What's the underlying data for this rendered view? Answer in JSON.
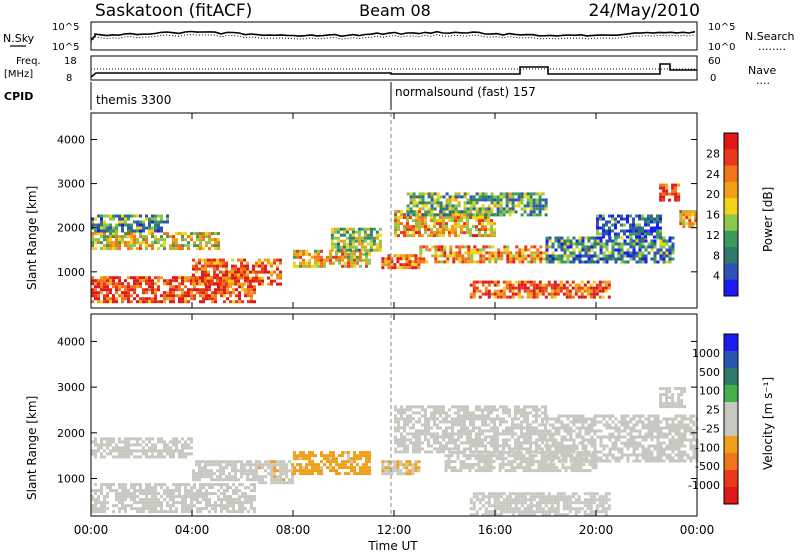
{
  "header": {
    "station": "Saskatoon (fitACF)",
    "beam": "Beam 08",
    "date": "24/May/2010"
  },
  "noise_panel": {
    "left_label": "N.Sky",
    "right_label": "N.Search",
    "tick_top": "10^5",
    "tick_bottom": "10^0",
    "legend_line": "........"
  },
  "freq_panel": {
    "left_label_1": "Freq.",
    "left_label_2": "[MHz]",
    "right_label": "Nave",
    "tick_top_left": "18",
    "tick_bottom_left": "8",
    "tick_top_right": "60",
    "tick_bottom_right": "0",
    "legend_line": "...."
  },
  "cpid_panel": {
    "label": "CPID",
    "segments": [
      {
        "name": "themis 3300",
        "start_hour": 0
      },
      {
        "name": "normalsound (fast) 157",
        "start_hour": 12
      }
    ]
  },
  "colors": {
    "power": [
      "#1c1cf0",
      "#2f52b8",
      "#2f7a6a",
      "#3c9a5c",
      "#8cc84c",
      "#f0d418",
      "#f0a018",
      "#f07418",
      "#e83a18",
      "#e01818"
    ],
    "velocity": [
      "#1c1cf0",
      "#2a56b0",
      "#2f7a6a",
      "#44b04c",
      "#c8c8c0",
      "#c8c8c0",
      "#f0a018",
      "#f07418",
      "#e83a18",
      "#e01818"
    ],
    "ground_scatter": "#c8c8c0"
  },
  "chart_data": [
    {
      "type": "heatmap",
      "name_key": "power",
      "ylabel": "Slant Range [km]",
      "xlabel": "",
      "xlim_hours": [
        0,
        24
      ],
      "ylim": [
        180,
        4600
      ],
      "yticks": [
        "1000",
        "2000",
        "3000",
        "4000"
      ],
      "colorbar_label": "Power [dB]",
      "colorbar_ticks": [
        "4",
        "8",
        "12",
        "16",
        "20",
        "24",
        "28"
      ],
      "colorbar_range": [
        0,
        32
      ],
      "regions": [
        {
          "t0": 0.0,
          "t1": 6.5,
          "r0": 350,
          "r1": 900,
          "level": 27
        },
        {
          "t0": 4.0,
          "t1": 7.5,
          "r0": 700,
          "r1": 1300,
          "level": 26
        },
        {
          "t0": 0.0,
          "t1": 5.0,
          "r0": 1500,
          "r1": 1900,
          "level": 18
        },
        {
          "t0": 0.0,
          "t1": 3.0,
          "r0": 1900,
          "r1": 2300,
          "level": 10
        },
        {
          "t0": 8.0,
          "t1": 11.0,
          "r0": 1100,
          "r1": 1500,
          "level": 20
        },
        {
          "t0": 9.5,
          "t1": 11.5,
          "r0": 1500,
          "r1": 2000,
          "level": 14
        },
        {
          "t0": 11.5,
          "t1": 13.0,
          "r0": 1100,
          "r1": 1400,
          "level": 24
        },
        {
          "t0": 12.0,
          "t1": 16.0,
          "r0": 1800,
          "r1": 2400,
          "level": 21
        },
        {
          "t0": 12.5,
          "t1": 18.0,
          "r0": 2300,
          "r1": 2800,
          "level": 12
        },
        {
          "t0": 13.0,
          "t1": 18.0,
          "r0": 1200,
          "r1": 1600,
          "level": 22
        },
        {
          "t0": 15.0,
          "t1": 20.5,
          "r0": 400,
          "r1": 800,
          "level": 26
        },
        {
          "t0": 18.0,
          "t1": 23.0,
          "r0": 1200,
          "r1": 1800,
          "level": 9
        },
        {
          "t0": 20.0,
          "t1": 22.5,
          "r0": 1800,
          "r1": 2300,
          "level": 6
        },
        {
          "t0": 22.5,
          "t1": 23.3,
          "r0": 2600,
          "r1": 3000,
          "level": 27
        },
        {
          "t0": 23.3,
          "t1": 24.0,
          "r0": 2000,
          "r1": 2400,
          "level": 20
        }
      ]
    },
    {
      "type": "heatmap",
      "name_key": "velocity",
      "ylabel": "Slant Range [km]",
      "xlabel": "Time UT",
      "xlim_hours": [
        0,
        24
      ],
      "ylim": [
        180,
        4600
      ],
      "yticks": [
        "1000",
        "2000",
        "3000",
        "4000"
      ],
      "xticks": [
        "00:00",
        "04:00",
        "08:00",
        "12:00",
        "16:00",
        "20:00",
        "00:00"
      ],
      "colorbar_label": "Velocity [m s⁻¹]",
      "colorbar_ticks": [
        "1000",
        "500",
        "100",
        "25",
        "-25",
        "-100",
        "-500",
        "-1000"
      ],
      "colorbar_range": [
        -1200,
        1200
      ],
      "regions": [
        {
          "t0": 0.0,
          "t1": 6.5,
          "r0": 300,
          "r1": 900,
          "level": 0,
          "ground": true
        },
        {
          "t0": 0.0,
          "t1": 4.0,
          "r0": 1500,
          "r1": 1900,
          "level": 0,
          "ground": true
        },
        {
          "t0": 4.0,
          "t1": 6.5,
          "r0": 1000,
          "r1": 1400,
          "level": 90
        },
        {
          "t0": 6.5,
          "t1": 8.0,
          "r0": 900,
          "r1": 1400,
          "level": -150
        },
        {
          "t0": 8.0,
          "t1": 11.0,
          "r0": 1100,
          "r1": 1600,
          "level": -350
        },
        {
          "t0": 11.5,
          "t1": 13.0,
          "r0": 1100,
          "r1": 1400,
          "level": -200
        },
        {
          "t0": 12.0,
          "t1": 18.0,
          "r0": 1600,
          "r1": 2600,
          "level": 0,
          "ground": true
        },
        {
          "t0": 14.0,
          "t1": 20.0,
          "r0": 1200,
          "r1": 1600,
          "level": 0,
          "ground": true
        },
        {
          "t0": 15.0,
          "t1": 20.5,
          "r0": 200,
          "r1": 700,
          "level": -60
        },
        {
          "t0": 18.0,
          "t1": 24.0,
          "r0": 1400,
          "r1": 2400,
          "level": 0,
          "ground": true
        },
        {
          "t0": 22.5,
          "t1": 23.5,
          "r0": 2600,
          "r1": 3000,
          "level": 0,
          "ground": true
        }
      ]
    }
  ]
}
